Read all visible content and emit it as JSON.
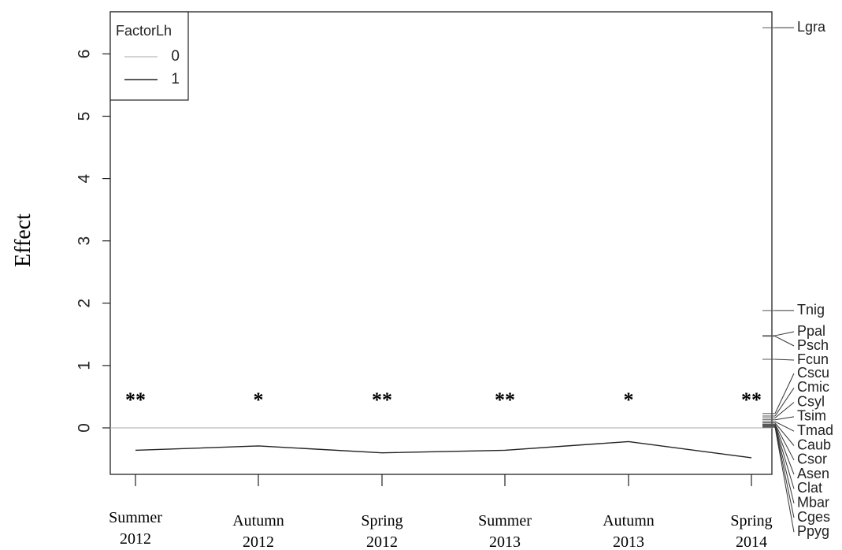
{
  "chart_data": {
    "type": "line",
    "ylabel": "Effect",
    "ylim": [
      -0.75,
      6.8
    ],
    "yticks": [
      0,
      1,
      2,
      3,
      4,
      5,
      6
    ],
    "categories": [
      [
        "Summer",
        "2012"
      ],
      [
        "Autumn",
        "2012"
      ],
      [
        "Spring",
        "2012"
      ],
      [
        "Summer",
        "2013"
      ],
      [
        "Autumn",
        "2013"
      ],
      [
        "Spring",
        "2014"
      ]
    ],
    "significance": [
      "**",
      "*",
      "**",
      "**",
      "*",
      "**"
    ],
    "series": [
      {
        "name": "0",
        "values": [
          0,
          0,
          0,
          0,
          0,
          0
        ],
        "color": "#bbbbbb"
      },
      {
        "name": "1",
        "values": [
          -0.36,
          -0.29,
          -0.4,
          -0.36,
          -0.22,
          -0.48
        ],
        "color": "#222222"
      }
    ],
    "legend": {
      "title": "FactorLh",
      "placement": "top-left"
    },
    "species": [
      {
        "label": "Lgra",
        "value": 6.42
      },
      {
        "label": "Tnig",
        "value": 1.88
      },
      {
        "label": "Ppal",
        "value": 1.48
      },
      {
        "label": "Psch",
        "value": 1.47
      },
      {
        "label": "Fcun",
        "value": 1.1
      },
      {
        "label": "Cscu",
        "value": 0.23
      },
      {
        "label": "Cmic",
        "value": 0.19
      },
      {
        "label": "Csyl",
        "value": 0.16
      },
      {
        "label": "Tsim",
        "value": 0.13
      },
      {
        "label": "Tmad",
        "value": 0.1
      },
      {
        "label": "Caub",
        "value": 0.08
      },
      {
        "label": "Csor",
        "value": 0.06
      },
      {
        "label": "Asen",
        "value": 0.05
      },
      {
        "label": "Clat",
        "value": 0.04
      },
      {
        "label": "Mbar",
        "value": 0.03
      },
      {
        "label": "Cges",
        "value": 0.02
      },
      {
        "label": "Ppyg",
        "value": 0.01
      }
    ]
  }
}
